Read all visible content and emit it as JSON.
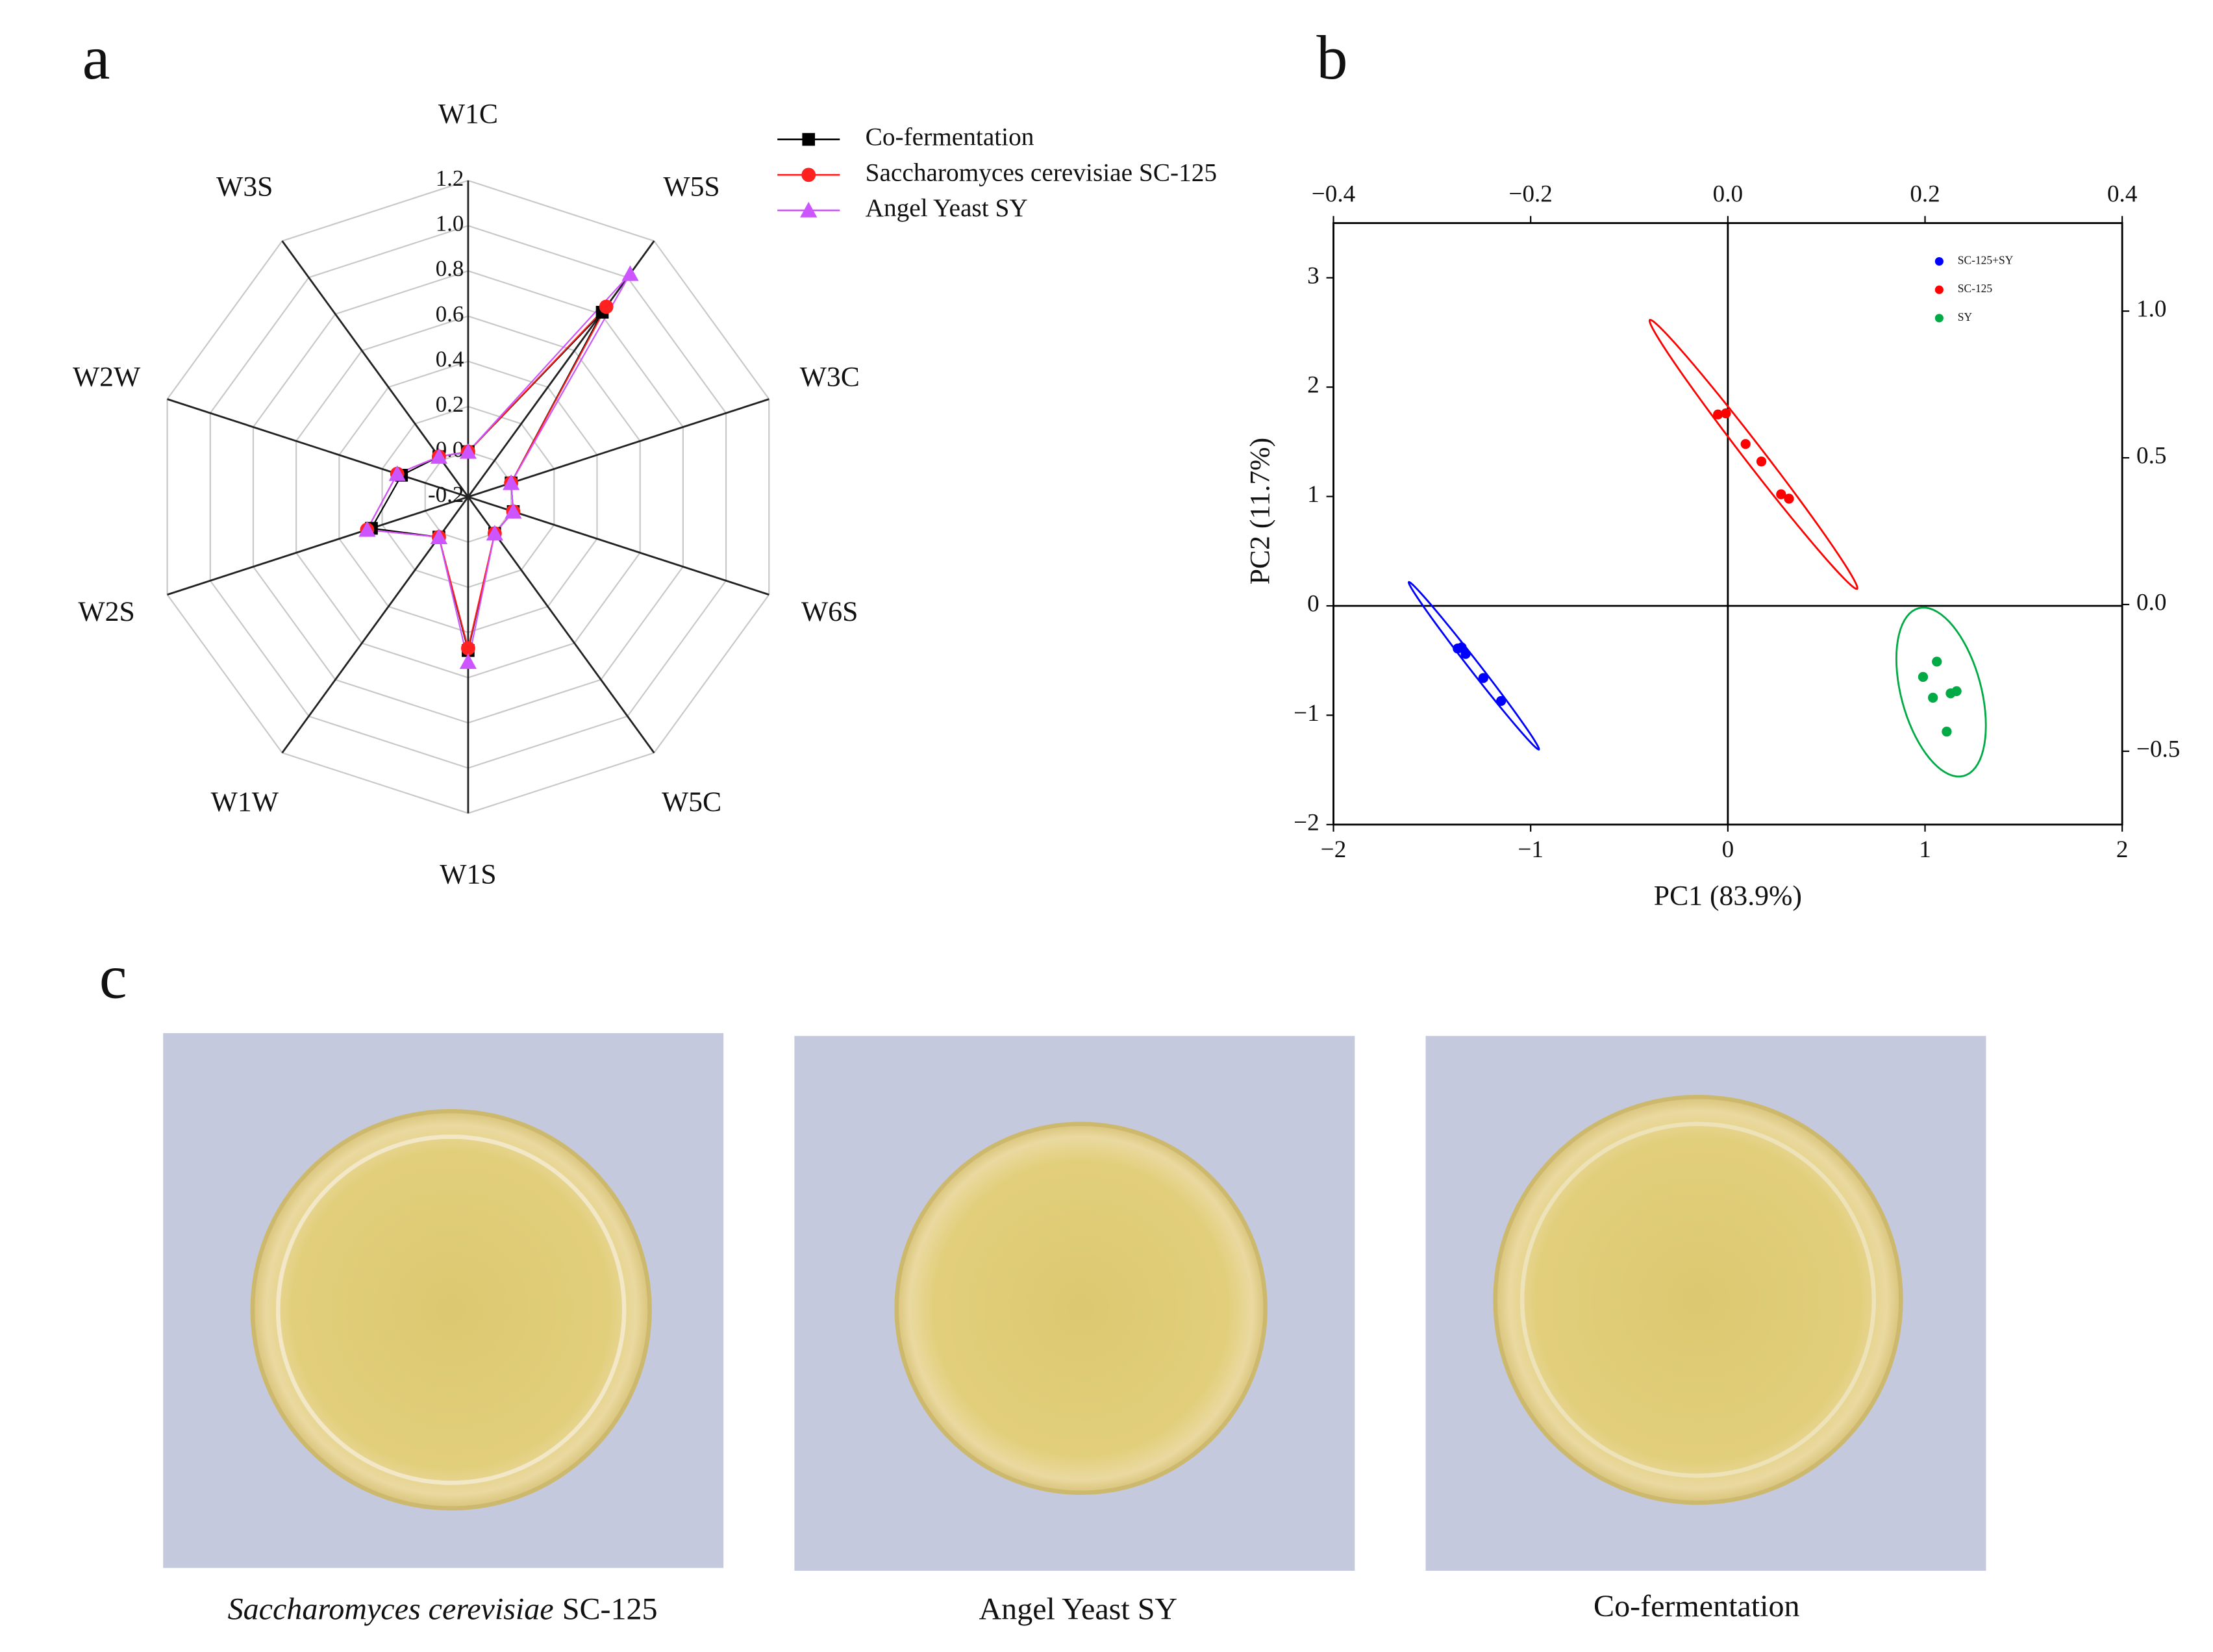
{
  "chart_data": [
    {
      "type": "radar",
      "label": "a",
      "categories": [
        "W1C",
        "W5S",
        "W3C",
        "W6S",
        "W5C",
        "W1S",
        "W1W",
        "W2S",
        "W2W",
        "W3S"
      ],
      "rlim": [
        -0.2,
        1.2
      ],
      "rticks": [
        -0.2,
        {
          "value": 0,
          "label": "0.0"
        },
        0.2,
        0.4,
        0.6,
        0.8,
        {
          "value": 1,
          "label": "1.0"
        },
        1.2
      ],
      "series": [
        {
          "name": "Co-fermentation",
          "color": "#000000",
          "marker": "square",
          "values": [
            0.0,
            0.81,
            0.0,
            0.01,
            0.0,
            0.48,
            0.02,
            0.25,
            0.11,
            0.02
          ]
        },
        {
          "name": "Saccharomyces cerevisiae SC-125",
          "color": "#ff2020",
          "marker": "circle",
          "values": [
            0.0,
            0.84,
            0.0,
            0.01,
            0.0,
            0.47,
            0.02,
            0.27,
            0.13,
            0.02
          ]
        },
        {
          "name": "Angel Yeast SY",
          "color": "#cc55ff",
          "marker": "triangle",
          "values": [
            0.0,
            1.02,
            0.0,
            0.01,
            0.0,
            0.53,
            0.02,
            0.27,
            0.13,
            0.02
          ]
        }
      ]
    },
    {
      "type": "scatter",
      "label": "b",
      "xlabel": "PC1 (83.9%)",
      "ylabel": "PC2 (11.7%)",
      "xlim": [
        -2,
        2
      ],
      "xticks": [
        {
          "value": -2,
          "label": "−2"
        },
        {
          "value": -1,
          "label": "−1"
        },
        0,
        1,
        2
      ],
      "ylim": [
        -2,
        3.5
      ],
      "yticks": [
        {
          "value": -2,
          "label": "−2"
        },
        {
          "value": -1,
          "label": "−1"
        },
        0,
        1,
        2,
        3
      ],
      "x2lim": [
        -0.4,
        0.4
      ],
      "x2ticks": [
        {
          "value": -0.4,
          "label": "−0.4"
        },
        {
          "value": -0.2,
          "label": "−0.2"
        },
        {
          "value": 0,
          "label": "0.0"
        },
        0.2,
        0.4
      ],
      "y2lim": [
        -0.75,
        1.3
      ],
      "y2ticks": [
        {
          "value": -0.5,
          "label": "−0.5"
        },
        {
          "value": 0,
          "label": "0.0"
        },
        0.5,
        {
          "value": 1,
          "label": "1.0"
        }
      ],
      "zero_lines": true,
      "confidence_ellipse": true,
      "series": [
        {
          "name": "SC-125+SY",
          "color": "#0000ff",
          "x": [
            -1.35,
            -1.33,
            -1.37,
            -1.24,
            -1.15
          ],
          "values": [
            -0.38,
            -0.44,
            -0.39,
            -0.66,
            -0.87
          ]
        },
        {
          "name": "SC-125",
          "color": "#ff0000",
          "x": [
            -0.05,
            -0.01,
            0.09,
            0.17,
            0.27,
            0.31
          ],
          "values": [
            1.75,
            1.76,
            1.48,
            1.32,
            1.02,
            0.98
          ]
        },
        {
          "name": "SY",
          "color": "#00aa44",
          "x": [
            1.06,
            0.99,
            1.04,
            1.13,
            1.16,
            1.11
          ],
          "values": [
            -0.51,
            -0.65,
            -0.84,
            -0.8,
            -0.78,
            -1.15
          ]
        }
      ]
    }
  ],
  "photos": {
    "label": "c",
    "captions": [
      {
        "italic": "Saccharomyces cerevisiae",
        "plain": "SC-125"
      },
      {
        "plain": "Angel Yeast SY"
      },
      {
        "plain": "Co-fermentation"
      }
    ]
  }
}
